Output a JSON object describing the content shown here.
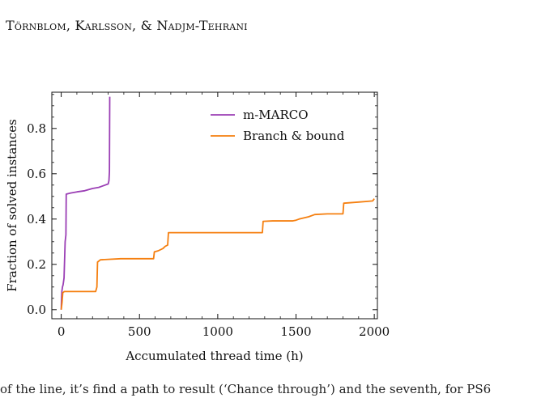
{
  "header": {
    "running_head": "Törnblom, Karlsson, & Nadjm-Tehrani"
  },
  "footer": {
    "fragment": "of the line, it’s find a path to result (‘Chance through’) and the seventh, for PS6"
  },
  "chart_data": {
    "type": "line",
    "title": "",
    "xlabel": "Accumulated thread time (h)",
    "ylabel": "Fraction of solved instances",
    "xlim": [
      -60,
      2020
    ],
    "ylim": [
      -0.04,
      0.96
    ],
    "xticks": [
      0,
      500,
      1000,
      1500,
      2000
    ],
    "yticks": [
      0.0,
      0.2,
      0.4,
      0.6,
      0.8
    ],
    "xtick_labels": [
      "0",
      "500",
      "1000",
      "1500",
      "2000"
    ],
    "ytick_labels": [
      "0.0",
      "0.2",
      "0.4",
      "0.6",
      "0.8"
    ],
    "grid": false,
    "legend_position": "top-right",
    "series": [
      {
        "name": "m-MARCO",
        "color": "#9b3fb5",
        "points": [
          [
            0,
            0.0
          ],
          [
            2,
            0.05
          ],
          [
            4,
            0.08
          ],
          [
            8,
            0.1
          ],
          [
            12,
            0.11
          ],
          [
            18,
            0.14
          ],
          [
            25,
            0.3
          ],
          [
            30,
            0.33
          ],
          [
            32,
            0.51
          ],
          [
            60,
            0.515
          ],
          [
            100,
            0.52
          ],
          [
            150,
            0.525
          ],
          [
            200,
            0.535
          ],
          [
            240,
            0.54
          ],
          [
            260,
            0.545
          ],
          [
            280,
            0.55
          ],
          [
            300,
            0.555
          ],
          [
            305,
            0.57
          ],
          [
            308,
            0.61
          ],
          [
            310,
            0.94
          ]
        ]
      },
      {
        "name": "Branch & bound",
        "color": "#f57f0f",
        "points": [
          [
            0,
            0.0
          ],
          [
            5,
            0.03
          ],
          [
            10,
            0.075
          ],
          [
            20,
            0.08
          ],
          [
            100,
            0.08
          ],
          [
            150,
            0.08
          ],
          [
            220,
            0.08
          ],
          [
            228,
            0.1
          ],
          [
            232,
            0.21
          ],
          [
            250,
            0.22
          ],
          [
            300,
            0.222
          ],
          [
            380,
            0.225
          ],
          [
            480,
            0.225
          ],
          [
            590,
            0.225
          ],
          [
            595,
            0.255
          ],
          [
            620,
            0.26
          ],
          [
            650,
            0.27
          ],
          [
            665,
            0.28
          ],
          [
            680,
            0.285
          ],
          [
            685,
            0.34
          ],
          [
            800,
            0.34
          ],
          [
            1000,
            0.34
          ],
          [
            1200,
            0.34
          ],
          [
            1285,
            0.34
          ],
          [
            1290,
            0.39
          ],
          [
            1350,
            0.392
          ],
          [
            1480,
            0.392
          ],
          [
            1500,
            0.395
          ],
          [
            1520,
            0.4
          ],
          [
            1580,
            0.41
          ],
          [
            1620,
            0.42
          ],
          [
            1700,
            0.423
          ],
          [
            1800,
            0.423
          ],
          [
            1805,
            0.47
          ],
          [
            1900,
            0.475
          ],
          [
            1990,
            0.48
          ],
          [
            2000,
            0.49
          ]
        ]
      }
    ]
  }
}
